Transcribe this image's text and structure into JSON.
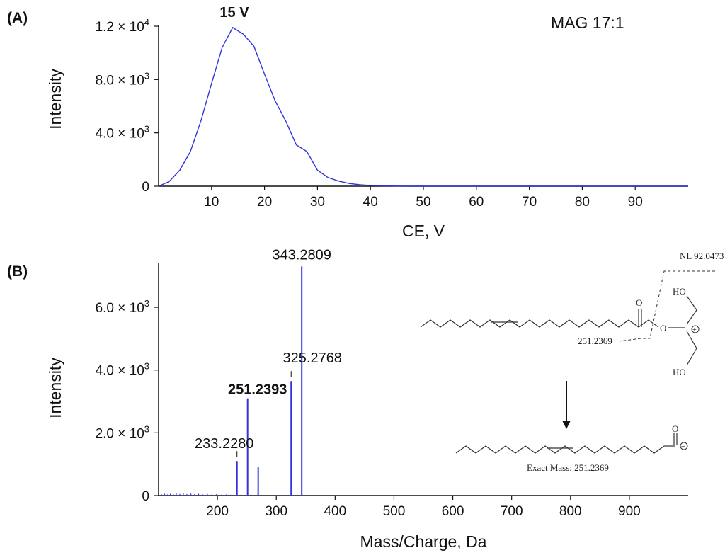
{
  "panel_a_label": "(A)",
  "panel_b_label": "(B)",
  "chart_data": [
    {
      "type": "line",
      "title": "",
      "annotation_compound": "MAG 17:1",
      "annotation_peak": "15 V",
      "xlabel": "CE, V",
      "ylabel": "Intensity",
      "xlim": [
        0,
        100
      ],
      "ylim": [
        0,
        12000
      ],
      "x_ticks": [
        10,
        20,
        30,
        40,
        50,
        60,
        70,
        80,
        90
      ],
      "y_ticks": [
        {
          "value": 0,
          "mantissa": "0",
          "exp": ""
        },
        {
          "value": 4000,
          "mantissa": "4.0 × 10",
          "exp": "3"
        },
        {
          "value": 8000,
          "mantissa": "8.0 × 10",
          "exp": "3"
        },
        {
          "value": 12000,
          "mantissa": "1.2 × 10",
          "exp": "4"
        }
      ],
      "color": "#3333dd",
      "series": [
        {
          "x": [
            0,
            2,
            4,
            6,
            8,
            10,
            12,
            14,
            16,
            18,
            20,
            22,
            24,
            26,
            28,
            30,
            32,
            34,
            36,
            38,
            40,
            42,
            44,
            46,
            50,
            60,
            70,
            80,
            90,
            100
          ],
          "y": [
            0,
            350,
            1200,
            2600,
            4900,
            7700,
            10400,
            11900,
            11400,
            10500,
            8400,
            6400,
            4900,
            3100,
            2600,
            1200,
            650,
            380,
            200,
            110,
            60,
            30,
            15,
            5,
            0,
            0,
            0,
            0,
            0,
            0
          ]
        }
      ]
    },
    {
      "type": "bar",
      "title": "",
      "xlabel": "Mass/Charge, Da",
      "ylabel": "Intensity",
      "xlim": [
        100,
        1000
      ],
      "ylim": [
        0,
        7400
      ],
      "x_ticks": [
        200,
        300,
        400,
        500,
        600,
        700,
        800,
        900
      ],
      "y_ticks": [
        {
          "value": 0,
          "mantissa": "0",
          "exp": ""
        },
        {
          "value": 2000,
          "mantissa": "2.0 × 10",
          "exp": "3"
        },
        {
          "value": 4000,
          "mantissa": "4.0 × 10",
          "exp": "3"
        },
        {
          "value": 6000,
          "mantissa": "6.0 × 10",
          "exp": "3"
        }
      ],
      "color": "#3333dd",
      "peaks": [
        {
          "mz": 233.228,
          "intensity": 1100,
          "label": "233.2280",
          "bold": false
        },
        {
          "mz": 251.2393,
          "intensity": 3100,
          "label": "251.2393",
          "bold": true
        },
        {
          "mz": 269.25,
          "intensity": 900,
          "label": "",
          "bold": false
        },
        {
          "mz": 325.2768,
          "intensity": 3650,
          "label": "325.2768",
          "bold": false
        },
        {
          "mz": 343.2809,
          "intensity": 7300,
          "label": "343.2809",
          "bold": false
        }
      ],
      "noise": [
        {
          "mz": 105,
          "intensity": 40
        },
        {
          "mz": 110,
          "intensity": 60
        },
        {
          "mz": 115,
          "intensity": 35
        },
        {
          "mz": 120,
          "intensity": 55
        },
        {
          "mz": 125,
          "intensity": 45
        },
        {
          "mz": 130,
          "intensity": 70
        },
        {
          "mz": 136,
          "intensity": 50
        },
        {
          "mz": 142,
          "intensity": 80
        },
        {
          "mz": 148,
          "intensity": 45
        },
        {
          "mz": 155,
          "intensity": 60
        },
        {
          "mz": 161,
          "intensity": 40
        },
        {
          "mz": 168,
          "intensity": 55
        },
        {
          "mz": 175,
          "intensity": 35
        },
        {
          "mz": 183,
          "intensity": 50
        },
        {
          "mz": 190,
          "intensity": 30
        },
        {
          "mz": 198,
          "intensity": 40
        },
        {
          "mz": 207,
          "intensity": 30
        },
        {
          "mz": 215,
          "intensity": 35
        },
        {
          "mz": 222,
          "intensity": 25
        },
        {
          "mz": 240,
          "intensity": 30
        },
        {
          "mz": 258,
          "intensity": 25
        },
        {
          "mz": 280,
          "intensity": 20
        },
        {
          "mz": 300,
          "intensity": 20
        },
        {
          "mz": 312,
          "intensity": 15
        }
      ]
    }
  ],
  "structure": {
    "nl_label": "NL 92.0473",
    "fragment_label": "251.2369",
    "ho_top": "HO",
    "ho_bottom": "HO",
    "o_carbonyl": "O",
    "o_ester": "O",
    "charge_plus": "+",
    "product_o": "O",
    "exact_mass": "Exact Mass: 251.2369"
  }
}
